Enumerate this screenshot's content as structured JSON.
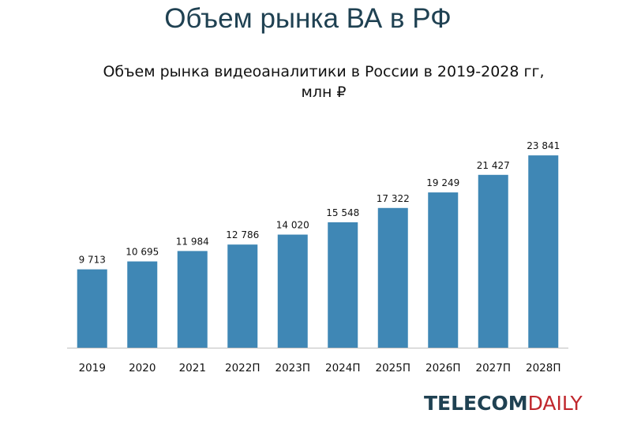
{
  "slide_title": "Объем рынка ВА в РФ",
  "logo": {
    "part1": "TELECOM",
    "part2": "DAILY"
  },
  "colors": {
    "bar": "#3f87b5",
    "title": "#1f4152",
    "logo_accent": "#c0272d"
  },
  "chart_data": {
    "type": "bar",
    "title_line1": "Объем рынка видеоаналитики в России в 2019-2028 гг,",
    "title_line2": "млн ₽",
    "categories": [
      "2019",
      "2020",
      "2021",
      "2022П",
      "2023П",
      "2024П",
      "2025П",
      "2026П",
      "2027П",
      "2028П"
    ],
    "values": [
      9713,
      10695,
      11984,
      12786,
      14020,
      15548,
      17322,
      19249,
      21427,
      23841
    ],
    "value_labels": [
      "9 713",
      "10 695",
      "11 984",
      "12 786",
      "14 020",
      "15 548",
      "17 322",
      "19 249",
      "21 427",
      "23 841"
    ],
    "ylim": [
      0,
      26000
    ],
    "grid": false,
    "legend": "none"
  }
}
